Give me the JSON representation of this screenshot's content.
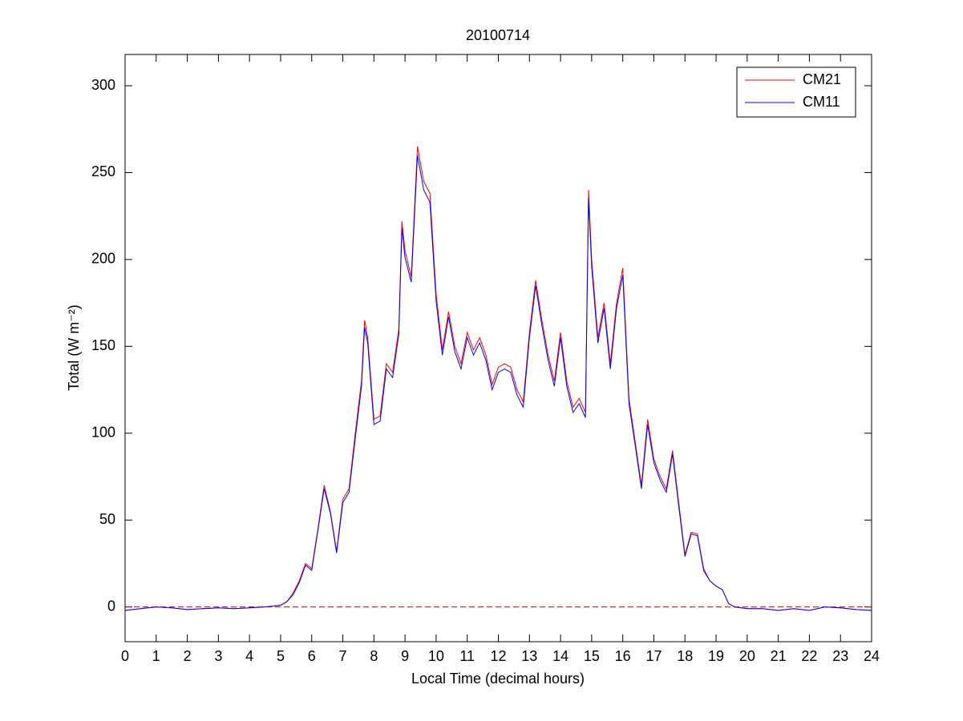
{
  "chart_data": {
    "type": "line",
    "title": "20100714",
    "xlabel": "Local Time (decimal hours)",
    "ylabel": "Total (W m⁻²)",
    "x": [
      0,
      0.5,
      1,
      1.5,
      2,
      2.5,
      3,
      3.5,
      4,
      4.5,
      5,
      5.2,
      5.4,
      5.6,
      5.8,
      6,
      6.2,
      6.4,
      6.6,
      6.8,
      7,
      7.2,
      7.4,
      7.6,
      7.7,
      7.8,
      8,
      8.2,
      8.4,
      8.6,
      8.8,
      8.9,
      9,
      9.2,
      9.4,
      9.6,
      9.8,
      10,
      10.2,
      10.4,
      10.6,
      10.8,
      11,
      11.2,
      11.4,
      11.6,
      11.8,
      12,
      12.2,
      12.4,
      12.6,
      12.8,
      13,
      13.2,
      13.4,
      13.6,
      13.8,
      14,
      14.2,
      14.4,
      14.6,
      14.8,
      14.9,
      15,
      15.2,
      15.4,
      15.6,
      15.8,
      16,
      16.2,
      16.4,
      16.6,
      16.8,
      17,
      17.2,
      17.4,
      17.6,
      17.8,
      18,
      18.2,
      18.4,
      18.6,
      18.8,
      19,
      19.2,
      19.4,
      19.6,
      20,
      20.5,
      21,
      21.5,
      22,
      22.5,
      23,
      23.5,
      24
    ],
    "series": [
      {
        "name": "CM21",
        "color": "#ff0000",
        "values": [
          -2,
          -1,
          0,
          -0.5,
          -1.5,
          -1,
          -0.5,
          -1,
          -0.5,
          0,
          1,
          3,
          8,
          15,
          25,
          22,
          45,
          70,
          55,
          32,
          62,
          68,
          100,
          130,
          165,
          155,
          108,
          110,
          140,
          135,
          160,
          222,
          205,
          190,
          265,
          245,
          238,
          180,
          148,
          170,
          150,
          140,
          158,
          148,
          155,
          145,
          128,
          138,
          140,
          138,
          125,
          118,
          158,
          188,
          165,
          145,
          130,
          158,
          130,
          115,
          120,
          112,
          240,
          200,
          155,
          175,
          140,
          175,
          195,
          120,
          95,
          70,
          108,
          85,
          75,
          68,
          90,
          60,
          30,
          43,
          42,
          22,
          15,
          12,
          10,
          2,
          0,
          -1,
          -1,
          -2,
          -1,
          -2,
          0,
          -0.5,
          -1.5,
          -2
        ]
      },
      {
        "name": "CM11",
        "color": "#0000ff",
        "values": [
          -2,
          -1,
          0,
          -0.5,
          -1.5,
          -1,
          -0.5,
          -1,
          -0.5,
          0,
          1,
          3,
          7,
          14,
          24,
          21,
          44,
          68,
          54,
          31,
          60,
          66,
          97,
          127,
          161,
          152,
          105,
          107,
          137,
          132,
          157,
          218,
          201,
          187,
          260,
          240,
          233,
          176,
          145,
          167,
          147,
          137,
          155,
          145,
          152,
          142,
          125,
          135,
          137,
          135,
          122,
          115,
          155,
          185,
          162,
          142,
          127,
          155,
          127,
          112,
          117,
          109,
          235,
          196,
          152,
          172,
          137,
          172,
          191,
          117,
          93,
          68,
          105,
          83,
          73,
          66,
          88,
          58,
          29,
          42,
          41,
          21,
          15,
          12,
          10,
          2,
          0,
          -1,
          -1,
          -2,
          -1,
          -2,
          0,
          -0.5,
          -1.5,
          -2
        ]
      }
    ],
    "xlim": [
      0,
      24
    ],
    "xticks": [
      0,
      1,
      2,
      3,
      4,
      5,
      6,
      7,
      8,
      9,
      10,
      11,
      12,
      13,
      14,
      15,
      16,
      17,
      18,
      19,
      20,
      21,
      22,
      23,
      24
    ],
    "ylim": [
      -20,
      318
    ],
    "yticks": [
      0,
      50,
      100,
      150,
      200,
      250,
      300
    ],
    "hline": 0,
    "hline_color": "#cc0000",
    "legend": "upper right"
  }
}
